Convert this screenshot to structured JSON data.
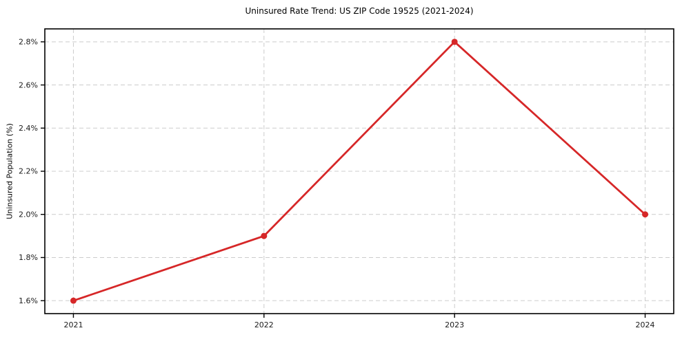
{
  "figure": {
    "background": "#ffffff"
  },
  "chart_data": {
    "type": "line",
    "title": "Uninsured Rate Trend: US ZIP Code 19525 (2021-2024)",
    "xlabel": "",
    "ylabel": "Uninsured Population (%)",
    "x": [
      2021,
      2022,
      2023,
      2024
    ],
    "y": [
      1.6,
      1.9,
      2.8,
      2.0
    ],
    "x_ticks": [
      2021,
      2022,
      2023,
      2024
    ],
    "x_tick_labels": [
      "2021",
      "2022",
      "2023",
      "2024"
    ],
    "y_ticks": [
      1.6,
      1.8,
      2.0,
      2.2,
      2.4,
      2.6,
      2.8
    ],
    "y_tick_labels": [
      "1.6%",
      "1.8%",
      "2.0%",
      "2.2%",
      "2.4%",
      "2.6%",
      "2.8%"
    ],
    "xlim": [
      2020.85,
      2024.15
    ],
    "ylim": [
      1.54,
      2.86
    ],
    "grid": true,
    "grid_style": "dashed",
    "legend": false,
    "style": {
      "line_color": "#d62728",
      "marker_color": "#d62728",
      "marker": "circle",
      "grid_color": "#cccccc",
      "axis_color": "#000000",
      "tick_label_color": "#1a1a1a",
      "title_color": "#000000"
    }
  }
}
